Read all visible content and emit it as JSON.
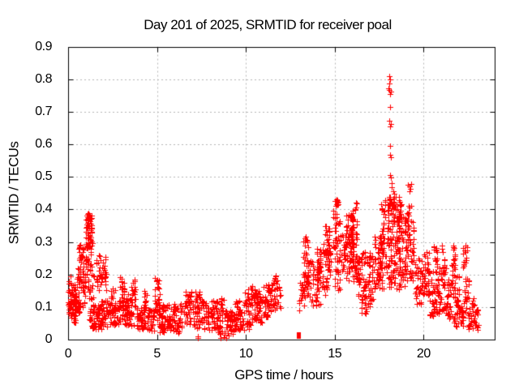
{
  "chart_data": {
    "type": "scatter",
    "title": "Day 201 of 2025, SRMTID for receiver poal",
    "xlabel": "GPS time / hours",
    "ylabel": "SRMTID / TECUs",
    "xlim": [
      0,
      24
    ],
    "ylim": [
      0,
      0.9
    ],
    "xticks": [
      "0",
      "5",
      "10",
      "15",
      "20"
    ],
    "yticks": [
      "0",
      "0.1",
      "0.2",
      "0.3",
      "0.4",
      "0.5",
      "0.6",
      "0.7",
      "0.8",
      "0.9"
    ],
    "grid": true,
    "legend": false,
    "marker": "plus-cross",
    "colors": {
      "points": "#ff0000",
      "grid": "#b6b6b6",
      "frame": "#000000",
      "background": "#ffffff",
      "text": "#000000"
    },
    "cluster_format": [
      "x_start_hours",
      "x_end_hours",
      "y_min_tecus",
      "y_max_tecus",
      "n_points"
    ],
    "clusters": [
      [
        0.0,
        0.15,
        0.06,
        0.2,
        25
      ],
      [
        0.1,
        0.5,
        0.05,
        0.17,
        55
      ],
      [
        0.45,
        0.7,
        0.08,
        0.22,
        30
      ],
      [
        0.6,
        0.88,
        0.15,
        0.3,
        35
      ],
      [
        0.8,
        0.98,
        0.1,
        0.22,
        18
      ],
      [
        0.95,
        1.35,
        0.28,
        0.39,
        55
      ],
      [
        1.0,
        1.32,
        0.2,
        0.3,
        25
      ],
      [
        1.1,
        1.45,
        0.12,
        0.22,
        18
      ],
      [
        1.2,
        1.9,
        0.03,
        0.11,
        65
      ],
      [
        1.6,
        2.15,
        0.15,
        0.265,
        42
      ],
      [
        1.85,
        2.3,
        0.04,
        0.12,
        28
      ],
      [
        2.3,
        2.95,
        0.04,
        0.13,
        50
      ],
      [
        2.4,
        2.65,
        0.08,
        0.16,
        14
      ],
      [
        2.9,
        3.15,
        0.05,
        0.2,
        28
      ],
      [
        3.1,
        3.7,
        0.04,
        0.14,
        55
      ],
      [
        3.55,
        3.8,
        0.1,
        0.185,
        16
      ],
      [
        3.8,
        4.4,
        0.03,
        0.1,
        50
      ],
      [
        4.25,
        4.45,
        0.08,
        0.15,
        12
      ],
      [
        4.45,
        4.85,
        0.025,
        0.09,
        38
      ],
      [
        4.8,
        5.15,
        0.06,
        0.19,
        32
      ],
      [
        5.1,
        6.4,
        0.02,
        0.11,
        105
      ],
      [
        6.45,
        6.95,
        0.04,
        0.15,
        42
      ],
      [
        7.0,
        7.6,
        0.03,
        0.155,
        48
      ],
      [
        7.6,
        8.4,
        0.03,
        0.12,
        65
      ],
      [
        8.4,
        9.4,
        0.015,
        0.09,
        70
      ],
      [
        8.55,
        8.8,
        0.09,
        0.13,
        10
      ],
      [
        9.4,
        10.3,
        0.03,
        0.12,
        65
      ],
      [
        9.95,
        10.3,
        0.1,
        0.16,
        14
      ],
      [
        10.3,
        11.0,
        0.05,
        0.15,
        55
      ],
      [
        10.35,
        10.55,
        0.12,
        0.17,
        10
      ],
      [
        11.0,
        11.5,
        0.07,
        0.17,
        42
      ],
      [
        11.4,
        11.95,
        0.09,
        0.2,
        42
      ],
      [
        13.0,
        13.2,
        0.08,
        0.18,
        14
      ],
      [
        13.2,
        13.5,
        0.1,
        0.32,
        28
      ],
      [
        13.3,
        13.6,
        0.13,
        0.25,
        22
      ],
      [
        13.6,
        14.2,
        0.1,
        0.25,
        50
      ],
      [
        14.0,
        14.3,
        0.2,
        0.285,
        22
      ],
      [
        14.2,
        14.8,
        0.13,
        0.3,
        46
      ],
      [
        14.4,
        14.7,
        0.25,
        0.35,
        22
      ],
      [
        14.9,
        15.35,
        0.25,
        0.43,
        42
      ],
      [
        15.0,
        15.3,
        0.15,
        0.25,
        18
      ],
      [
        15.35,
        16.3,
        0.18,
        0.33,
        85
      ],
      [
        15.6,
        16.05,
        0.28,
        0.39,
        36
      ],
      [
        15.9,
        16.3,
        0.3,
        0.42,
        22
      ],
      [
        16.3,
        17.2,
        0.12,
        0.27,
        80
      ],
      [
        16.5,
        17.0,
        0.08,
        0.14,
        18
      ],
      [
        17.2,
        17.75,
        0.15,
        0.32,
        65
      ],
      [
        17.6,
        18.0,
        0.2,
        0.44,
        40
      ],
      [
        18.0,
        18.45,
        0.25,
        0.44,
        65
      ],
      [
        18.0,
        18.45,
        0.16,
        0.25,
        28
      ],
      [
        18.45,
        19.0,
        0.15,
        0.38,
        70
      ],
      [
        18.5,
        18.75,
        0.32,
        0.44,
        22
      ],
      [
        19.0,
        19.45,
        0.18,
        0.42,
        60
      ],
      [
        19.5,
        20.0,
        0.1,
        0.25,
        40
      ],
      [
        20.0,
        20.35,
        0.13,
        0.27,
        36
      ],
      [
        20.3,
        20.6,
        0.06,
        0.2,
        22
      ],
      [
        20.55,
        20.8,
        0.2,
        0.29,
        16
      ],
      [
        20.6,
        21.3,
        0.08,
        0.22,
        60
      ],
      [
        21.0,
        21.2,
        0.2,
        0.29,
        14
      ],
      [
        21.3,
        21.8,
        0.05,
        0.2,
        45
      ],
      [
        21.6,
        21.78,
        0.2,
        0.29,
        16
      ],
      [
        21.8,
        22.3,
        0.04,
        0.12,
        40
      ],
      [
        21.9,
        22.0,
        0.1,
        0.2,
        10
      ],
      [
        22.2,
        22.45,
        0.2,
        0.29,
        14
      ],
      [
        22.3,
        22.55,
        0.08,
        0.2,
        18
      ],
      [
        22.5,
        23.15,
        0.03,
        0.1,
        40
      ],
      [
        22.7,
        22.85,
        0.1,
        0.13,
        8
      ]
    ],
    "outlier_points": [
      [
        1.08,
        0.385
      ],
      [
        1.13,
        0.38
      ],
      [
        1.18,
        0.375
      ],
      [
        7.3,
        0.005
      ],
      [
        7.32,
        0.01
      ],
      [
        8.6,
        0.005
      ],
      [
        8.78,
        0.008
      ],
      [
        8.92,
        0.004
      ],
      [
        9.05,
        0.012
      ],
      [
        13.35,
        0.315
      ],
      [
        13.4,
        0.305
      ],
      [
        15.08,
        0.43
      ],
      [
        15.12,
        0.425
      ],
      [
        15.1,
        0.415
      ],
      [
        18.05,
        0.81
      ],
      [
        18.12,
        0.8
      ],
      [
        18.09,
        0.787
      ],
      [
        18.02,
        0.772
      ],
      [
        18.08,
        0.768
      ],
      [
        18.15,
        0.762
      ],
      [
        18.12,
        0.755
      ],
      [
        18.1,
        0.715
      ],
      [
        18.08,
        0.672
      ],
      [
        18.16,
        0.662
      ],
      [
        18.12,
        0.655
      ],
      [
        18.1,
        0.595
      ],
      [
        18.13,
        0.568
      ],
      [
        18.18,
        0.56
      ],
      [
        18.1,
        0.506
      ],
      [
        18.17,
        0.497
      ],
      [
        18.22,
        0.48
      ],
      [
        18.19,
        0.467
      ],
      [
        18.28,
        0.456
      ],
      [
        18.35,
        0.448
      ],
      [
        19.14,
        0.476
      ],
      [
        19.3,
        0.478
      ],
      [
        19.2,
        0.47
      ],
      [
        19.27,
        0.462
      ],
      [
        19.22,
        0.455
      ],
      [
        21.68,
        0.29
      ],
      [
        22.35,
        0.288
      ]
    ],
    "zero_marker": {
      "x": 12.97,
      "y": 0.012,
      "shape": "filled-square"
    }
  }
}
